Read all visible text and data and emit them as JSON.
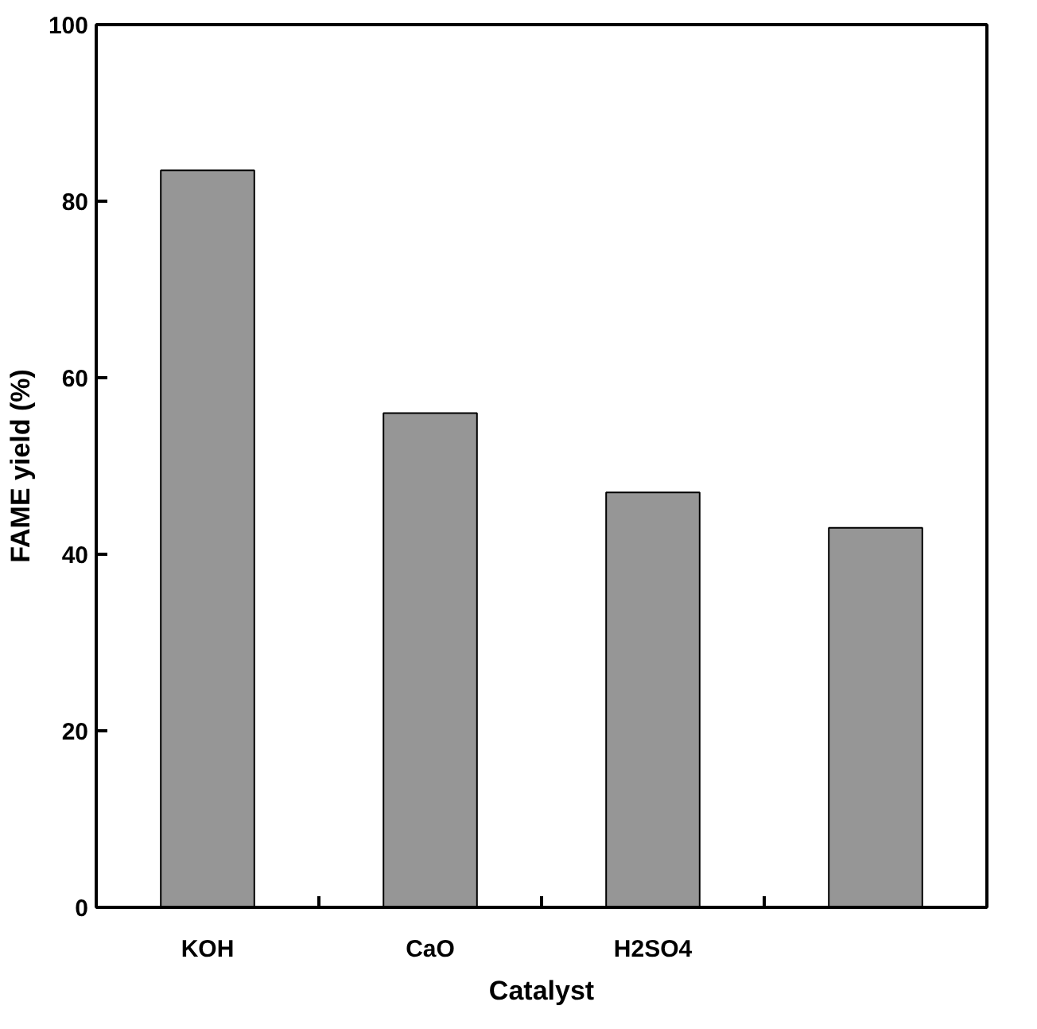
{
  "chart_data": {
    "type": "bar",
    "xlabel": "Catalyst",
    "ylabel": "FAME yield (%)",
    "categories": [
      "KOH",
      "CaO",
      "H2SO4",
      null
    ],
    "values": [
      83.5,
      56,
      47,
      43
    ],
    "color": "#969696",
    "ylim": [
      0,
      100
    ],
    "yticks": [
      0,
      20,
      40,
      60,
      80,
      100
    ],
    "grid": false
  }
}
